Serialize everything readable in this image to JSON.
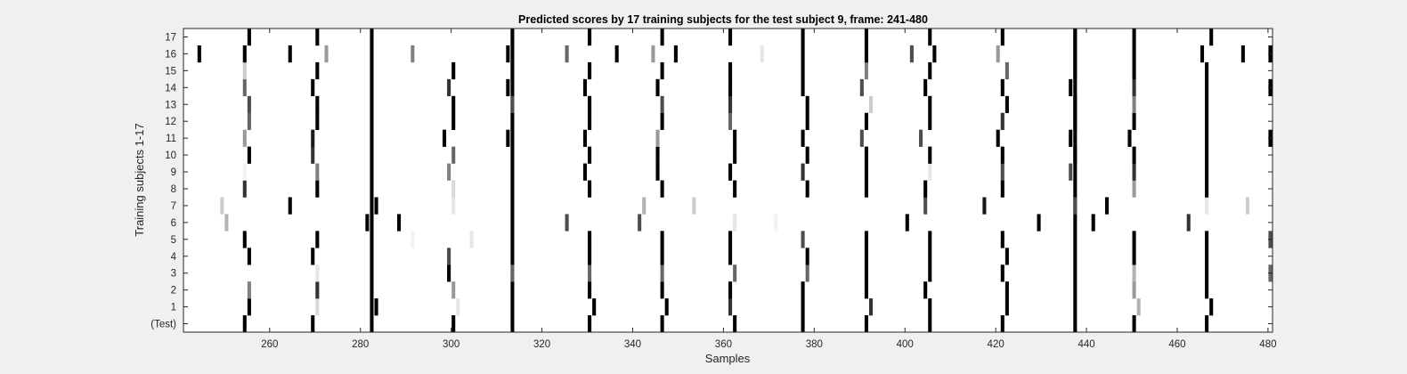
{
  "chart_data": {
    "type": "heatmap",
    "title": "Predicted scores by 17 training subjects for the test subject 9, frame: 241-480",
    "xlabel": "Samples",
    "ylabel": "Training subjects 1-17",
    "xlim": [
      241,
      480
    ],
    "x_ticks": [
      260,
      280,
      300,
      320,
      340,
      360,
      380,
      400,
      420,
      440,
      460,
      480
    ],
    "y_tick_labels": [
      "(Test)",
      "1",
      "2",
      "3",
      "4",
      "5",
      "6",
      "7",
      "8",
      "9",
      "10",
      "11",
      "12",
      "13",
      "14",
      "15",
      "16",
      "17"
    ],
    "colormap": "gray (white = 0, black = 1)",
    "grid": false,
    "vertical_bands": [
      {
        "x": 282,
        "value": 1.0
      },
      {
        "x": 313,
        "value": 1.0
      },
      {
        "x": 437,
        "value": 1.0
      }
    ],
    "rows": [
      {
        "label": "(Test)",
        "marks": [
          [
            254,
            1
          ],
          [
            269,
            1
          ],
          [
            300,
            1
          ],
          [
            330,
            1
          ],
          [
            346,
            1
          ],
          [
            362,
            1
          ],
          [
            377,
            1
          ],
          [
            391,
            1
          ],
          [
            405,
            1
          ],
          [
            421,
            1
          ],
          [
            450,
            1
          ],
          [
            466,
            1
          ]
        ]
      },
      {
        "label": "1",
        "marks": [
          [
            255,
            1
          ],
          [
            270,
            0.15
          ],
          [
            283,
            1
          ],
          [
            301,
            0.1
          ],
          [
            331,
            1
          ],
          [
            347,
            1
          ],
          [
            361,
            0.8
          ],
          [
            377,
            1
          ],
          [
            392,
            0.8
          ],
          [
            405,
            1
          ],
          [
            422,
            1
          ],
          [
            451,
            0.3
          ],
          [
            467,
            1
          ]
        ]
      },
      {
        "label": "2",
        "marks": [
          [
            255,
            0.5
          ],
          [
            270,
            0.8
          ],
          [
            300,
            0.4
          ],
          [
            330,
            1
          ],
          [
            346,
            1
          ],
          [
            361,
            1
          ],
          [
            377,
            1
          ],
          [
            391,
            1
          ],
          [
            404,
            1
          ],
          [
            422,
            1
          ],
          [
            450,
            0.4
          ],
          [
            466,
            1
          ]
        ]
      },
      {
        "label": "3",
        "marks": [
          [
            270,
            0.1
          ],
          [
            299,
            1
          ],
          [
            313,
            0.6
          ],
          [
            330,
            0.6
          ],
          [
            346,
            0.6
          ],
          [
            362,
            0.6
          ],
          [
            378,
            0.6
          ],
          [
            391,
            1
          ],
          [
            405,
            1
          ],
          [
            421,
            1
          ],
          [
            450,
            0.3
          ],
          [
            466,
            1
          ],
          [
            480,
            0.6
          ]
        ]
      },
      {
        "label": "4",
        "marks": [
          [
            255,
            1
          ],
          [
            269,
            1
          ],
          [
            299,
            0.7
          ],
          [
            330,
            1
          ],
          [
            346,
            1
          ],
          [
            361,
            1
          ],
          [
            378,
            1
          ],
          [
            391,
            1
          ],
          [
            405,
            1
          ],
          [
            422,
            1
          ],
          [
            450,
            1
          ],
          [
            466,
            1
          ]
        ]
      },
      {
        "label": "5",
        "marks": [
          [
            254,
            1
          ],
          [
            270,
            1
          ],
          [
            291,
            0.05
          ],
          [
            304,
            0.1
          ],
          [
            330,
            1
          ],
          [
            346,
            1
          ],
          [
            361,
            1
          ],
          [
            377,
            0.7
          ],
          [
            391,
            1
          ],
          [
            405,
            1
          ],
          [
            421,
            1
          ],
          [
            450,
            1
          ],
          [
            466,
            1
          ],
          [
            480,
            0.7
          ]
        ]
      },
      {
        "label": "6",
        "marks": [
          [
            250,
            0.3
          ],
          [
            281,
            1
          ],
          [
            288,
            1
          ],
          [
            325,
            0.7
          ],
          [
            341,
            0.7
          ],
          [
            362,
            0.1
          ],
          [
            371,
            0.05
          ],
          [
            400,
            1
          ],
          [
            429,
            1
          ],
          [
            441,
            1
          ],
          [
            462,
            0.8
          ]
        ]
      },
      {
        "label": "7",
        "marks": [
          [
            249,
            0.2
          ],
          [
            264,
            1
          ],
          [
            283,
            1
          ],
          [
            300,
            0.1
          ],
          [
            342,
            0.3
          ],
          [
            353,
            0.2
          ],
          [
            404,
            0.7
          ],
          [
            417,
            0.9
          ],
          [
            437,
            0.7
          ],
          [
            444,
            1
          ],
          [
            466,
            0.1
          ],
          [
            475,
            0.2
          ]
        ]
      },
      {
        "label": "8",
        "marks": [
          [
            254,
            0.8
          ],
          [
            270,
            1
          ],
          [
            300,
            0.15
          ],
          [
            330,
            1
          ],
          [
            346,
            1
          ],
          [
            362,
            1
          ],
          [
            378,
            1
          ],
          [
            391,
            1
          ],
          [
            404,
            1
          ],
          [
            421,
            1
          ],
          [
            450,
            0.4
          ],
          [
            466,
            1
          ]
        ]
      },
      {
        "label": "9",
        "marks": [
          [
            254,
            0.05
          ],
          [
            270,
            0.5
          ],
          [
            299,
            0.5
          ],
          [
            329,
            1
          ],
          [
            345,
            1
          ],
          [
            361,
            1
          ],
          [
            377,
            0.8
          ],
          [
            391,
            1
          ],
          [
            405,
            0.1
          ],
          [
            421,
            0.7
          ],
          [
            436,
            0.7
          ],
          [
            450,
            0.8
          ],
          [
            466,
            1
          ]
        ]
      },
      {
        "label": "10",
        "marks": [
          [
            255,
            1
          ],
          [
            269,
            0.8
          ],
          [
            300,
            0.6
          ],
          [
            330,
            1
          ],
          [
            345,
            1
          ],
          [
            362,
            1
          ],
          [
            378,
            1
          ],
          [
            391,
            1
          ],
          [
            405,
            1
          ],
          [
            421,
            1
          ],
          [
            437,
            1
          ],
          [
            450,
            1
          ],
          [
            466,
            1
          ]
        ]
      },
      {
        "label": "11",
        "marks": [
          [
            254,
            0.4
          ],
          [
            269,
            0.9
          ],
          [
            298,
            1
          ],
          [
            312,
            1
          ],
          [
            329,
            1
          ],
          [
            345,
            0.4
          ],
          [
            362,
            1
          ],
          [
            377,
            1
          ],
          [
            390,
            0.7
          ],
          [
            403,
            0.7
          ],
          [
            420,
            1
          ],
          [
            436,
            1
          ],
          [
            449,
            1
          ],
          [
            466,
            1
          ],
          [
            480,
            1
          ]
        ]
      },
      {
        "label": "12",
        "marks": [
          [
            255,
            0.6
          ],
          [
            270,
            1
          ],
          [
            300,
            1
          ],
          [
            313,
            1
          ],
          [
            330,
            1
          ],
          [
            346,
            1
          ],
          [
            361,
            0.6
          ],
          [
            378,
            1
          ],
          [
            391,
            1
          ],
          [
            405,
            1
          ],
          [
            421,
            0.8
          ],
          [
            437,
            1
          ],
          [
            450,
            1
          ],
          [
            466,
            1
          ]
        ]
      },
      {
        "label": "13",
        "marks": [
          [
            255,
            0.7
          ],
          [
            270,
            1
          ],
          [
            300,
            1
          ],
          [
            313,
            0.7
          ],
          [
            330,
            1
          ],
          [
            346,
            0.7
          ],
          [
            361,
            0.8
          ],
          [
            378,
            1
          ],
          [
            392,
            0.2
          ],
          [
            405,
            1
          ],
          [
            422,
            1
          ],
          [
            437,
            1
          ],
          [
            450,
            0.5
          ],
          [
            466,
            1
          ]
        ]
      },
      {
        "label": "14",
        "marks": [
          [
            254,
            0.6
          ],
          [
            269,
            1
          ],
          [
            299,
            0.8
          ],
          [
            312,
            1
          ],
          [
            329,
            1
          ],
          [
            345,
            1
          ],
          [
            361,
            1
          ],
          [
            377,
            1
          ],
          [
            390,
            0.7
          ],
          [
            404,
            1
          ],
          [
            421,
            1
          ],
          [
            436,
            1
          ],
          [
            450,
            0.8
          ],
          [
            466,
            1
          ],
          [
            480,
            1
          ]
        ]
      },
      {
        "label": "15",
        "marks": [
          [
            254,
            0.2
          ],
          [
            270,
            1
          ],
          [
            300,
            1
          ],
          [
            313,
            1
          ],
          [
            330,
            1
          ],
          [
            346,
            1
          ],
          [
            361,
            1
          ],
          [
            377,
            1
          ],
          [
            391,
            0.5
          ],
          [
            405,
            1
          ],
          [
            422,
            0.6
          ],
          [
            437,
            1
          ],
          [
            450,
            1
          ],
          [
            466,
            1
          ]
        ]
      },
      {
        "label": "16",
        "marks": [
          [
            244,
            1
          ],
          [
            254,
            1
          ],
          [
            264,
            1
          ],
          [
            272,
            0.4
          ],
          [
            291,
            0.5
          ],
          [
            312,
            1
          ],
          [
            325,
            0.6
          ],
          [
            336,
            1
          ],
          [
            344,
            0.4
          ],
          [
            349,
            1
          ],
          [
            368,
            0.1
          ],
          [
            377,
            1
          ],
          [
            391,
            1
          ],
          [
            401,
            0.7
          ],
          [
            406,
            1
          ],
          [
            420,
            0.4
          ],
          [
            437,
            1
          ],
          [
            450,
            1
          ],
          [
            465,
            1
          ],
          [
            474,
            1
          ],
          [
            480,
            1
          ]
        ]
      },
      {
        "label": "17",
        "marks": [
          [
            255,
            1
          ],
          [
            270,
            1
          ],
          [
            313,
            1
          ],
          [
            330,
            1
          ],
          [
            346,
            1
          ],
          [
            361,
            1
          ],
          [
            377,
            1
          ],
          [
            391,
            1
          ],
          [
            405,
            1
          ],
          [
            421,
            1
          ],
          [
            437,
            1
          ],
          [
            450,
            1
          ],
          [
            467,
            1
          ]
        ]
      }
    ]
  }
}
